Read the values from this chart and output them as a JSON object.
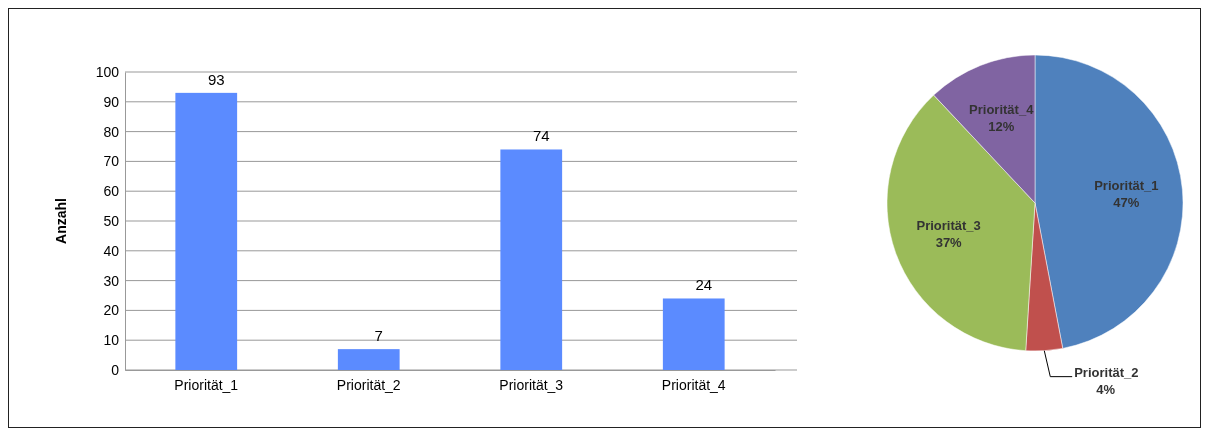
{
  "chart_data": [
    {
      "type": "bar",
      "ylabel": "Anzahl",
      "categories": [
        "Priorität_1",
        "Priorität_2",
        "Priorität_3",
        "Priorität_4"
      ],
      "values": [
        93,
        7,
        74,
        24
      ],
      "color": "#5b8bff",
      "ylim": [
        0,
        100
      ],
      "yticks": [
        0,
        10,
        20,
        30,
        40,
        50,
        60,
        70,
        80,
        90,
        100
      ],
      "grid": "y",
      "data_labels": true
    },
    {
      "type": "pie",
      "categories": [
        "Priorität_1",
        "Priorität_2",
        "Priorität_3",
        "Priorität_4"
      ],
      "values": [
        47,
        4,
        37,
        12
      ],
      "colors": [
        "#4f81bd",
        "#c0504d",
        "#9bbb59",
        "#8064a2"
      ],
      "value_labels": [
        "47%",
        "4%",
        "37%",
        "12%"
      ]
    }
  ]
}
